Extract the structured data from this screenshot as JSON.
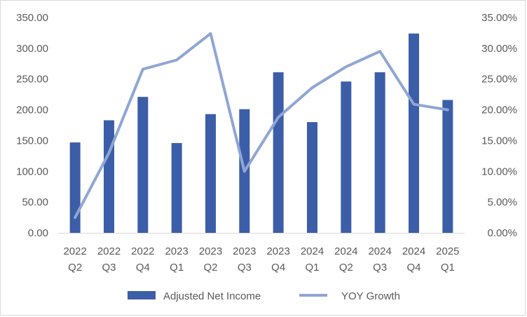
{
  "chart_data": {
    "type": "bar+line",
    "categories": [
      [
        "2022",
        "Q2"
      ],
      [
        "2022",
        "Q3"
      ],
      [
        "2022",
        "Q4"
      ],
      [
        "2023",
        "Q1"
      ],
      [
        "2023",
        "Q2"
      ],
      [
        "2023",
        "Q3"
      ],
      [
        "2023",
        "Q4"
      ],
      [
        "2024",
        "Q1"
      ],
      [
        "2024",
        "Q2"
      ],
      [
        "2024",
        "Q3"
      ],
      [
        "2024",
        "Q4"
      ],
      [
        "2025",
        "Q1"
      ]
    ],
    "series": [
      {
        "name": "Adjusted Net Income",
        "type": "bar",
        "axis": "left",
        "color": "#3c5ea8",
        "values": [
          147,
          183,
          221,
          146,
          193,
          201,
          261,
          180,
          246,
          261,
          324,
          216
        ]
      },
      {
        "name": "YOY Growth",
        "type": "line",
        "axis": "right",
        "color": "#8fa6d4",
        "values": [
          2.5,
          13.0,
          26.6,
          28.1,
          32.4,
          10.0,
          18.8,
          23.6,
          27.0,
          29.5,
          20.9,
          20.0
        ]
      }
    ],
    "y_left": {
      "min": 0,
      "max": 350,
      "step": 50,
      "tick_labels": [
        "0.00",
        "50.00",
        "100.00",
        "150.00",
        "200.00",
        "250.00",
        "300.00",
        "350.00"
      ]
    },
    "y_right": {
      "min": 0,
      "max": 35,
      "step": 5,
      "tick_labels": [
        "0.00%",
        "5.00%",
        "10.00%",
        "15.00%",
        "20.00%",
        "25.00%",
        "30.00%",
        "35.00%"
      ]
    },
    "grid": false,
    "legend_position": "bottom",
    "title": ""
  }
}
